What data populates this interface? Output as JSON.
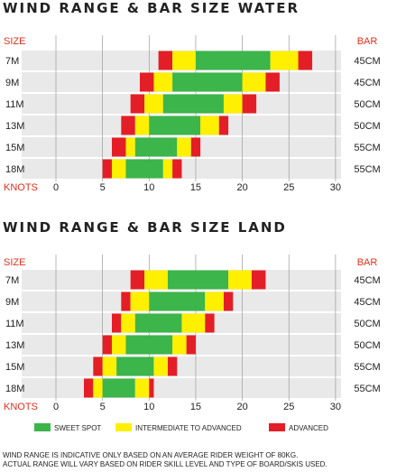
{
  "chart_data": [
    {
      "type": "bar",
      "title": "WIND RANGE & BAR SIZE WATER",
      "size_header": "SIZE",
      "bar_header": "BAR",
      "xlabel": "KNOTS",
      "x_ticks": [
        "0",
        "5",
        "10",
        "15",
        "20",
        "25",
        "30"
      ],
      "xlim": [
        0,
        30
      ],
      "grid": true,
      "rows": [
        {
          "size": "7M",
          "bar": "45CM",
          "red_start": 11.0,
          "yellow_start": 12.5,
          "green_start": 15.0,
          "green_end": 23.0,
          "yellow_end": 26.0,
          "red_end": 27.5
        },
        {
          "size": "9M",
          "bar": "45CM",
          "red_start": 9.0,
          "yellow_start": 10.5,
          "green_start": 12.5,
          "green_end": 20.0,
          "yellow_end": 22.5,
          "red_end": 24.0
        },
        {
          "size": "11M",
          "bar": "50CM",
          "red_start": 8.0,
          "yellow_start": 9.5,
          "green_start": 11.5,
          "green_end": 18.0,
          "yellow_end": 20.0,
          "red_end": 21.5
        },
        {
          "size": "13M",
          "bar": "50CM",
          "red_start": 7.0,
          "yellow_start": 8.5,
          "green_start": 10.0,
          "green_end": 15.5,
          "yellow_end": 17.5,
          "red_end": 18.5
        },
        {
          "size": "15M",
          "bar": "55CM",
          "red_start": 6.0,
          "yellow_start": 7.5,
          "green_start": 8.5,
          "green_end": 13.0,
          "yellow_end": 14.5,
          "red_end": 15.5
        },
        {
          "size": "18M",
          "bar": "55CM",
          "red_start": 5.0,
          "yellow_start": 6.0,
          "green_start": 7.5,
          "green_end": 11.5,
          "yellow_end": 12.5,
          "red_end": 13.5
        }
      ]
    },
    {
      "type": "bar",
      "title": "WIND RANGE & BAR SIZE LAND",
      "size_header": "SIZE",
      "bar_header": "BAR",
      "xlabel": "KNOTS",
      "x_ticks": [
        "0",
        "5",
        "10",
        "15",
        "20",
        "25",
        "30"
      ],
      "xlim": [
        0,
        30
      ],
      "grid": true,
      "rows": [
        {
          "size": "7M",
          "bar": "45CM",
          "red_start": 8.0,
          "yellow_start": 9.5,
          "green_start": 12.0,
          "green_end": 18.5,
          "yellow_end": 21.0,
          "red_end": 22.5
        },
        {
          "size": "9M",
          "bar": "45CM",
          "red_start": 7.0,
          "yellow_start": 8.0,
          "green_start": 10.0,
          "green_end": 16.0,
          "yellow_end": 18.0,
          "red_end": 19.0
        },
        {
          "size": "11M",
          "bar": "50CM",
          "red_start": 6.0,
          "yellow_start": 7.0,
          "green_start": 8.5,
          "green_end": 13.5,
          "yellow_end": 16.0,
          "red_end": 17.0
        },
        {
          "size": "13M",
          "bar": "50CM",
          "red_start": 5.0,
          "yellow_start": 6.0,
          "green_start": 7.5,
          "green_end": 12.5,
          "yellow_end": 14.0,
          "red_end": 15.0
        },
        {
          "size": "15M",
          "bar": "55CM",
          "red_start": 4.0,
          "yellow_start": 5.0,
          "green_start": 6.5,
          "green_end": 10.5,
          "yellow_end": 12.0,
          "red_end": 13.0
        },
        {
          "size": "18M",
          "bar": "55CM",
          "red_start": 3.0,
          "yellow_start": 4.0,
          "green_start": 5.0,
          "green_end": 8.5,
          "yellow_end": 10.0,
          "red_end": 10.5
        }
      ]
    }
  ],
  "legend": [
    {
      "label": "SWEET SPOT",
      "color": "#3cb54a"
    },
    {
      "label": "INTERMEDIATE TO ADVANCED",
      "color": "#ffef00"
    },
    {
      "label": "ADVANCED",
      "color": "#e41e26"
    }
  ],
  "colors": {
    "header_red": "#e0301e",
    "row_bg": "#e9e9ea",
    "grid": "#9a9a9a",
    "green": "#3cb54a",
    "yellow": "#ffef00",
    "red": "#e41e26"
  },
  "footnote": {
    "line1": "WIND RANGE IS INDICATIVE ONLY BASED ON AN AVERAGE RIDER WEIGHT OF 80KG.",
    "line2": "ACTUAL RANGE WILL VARY BASED ON RIDER SKILL LEVEL AND TYPE OF BOARD/SKIS USED."
  }
}
